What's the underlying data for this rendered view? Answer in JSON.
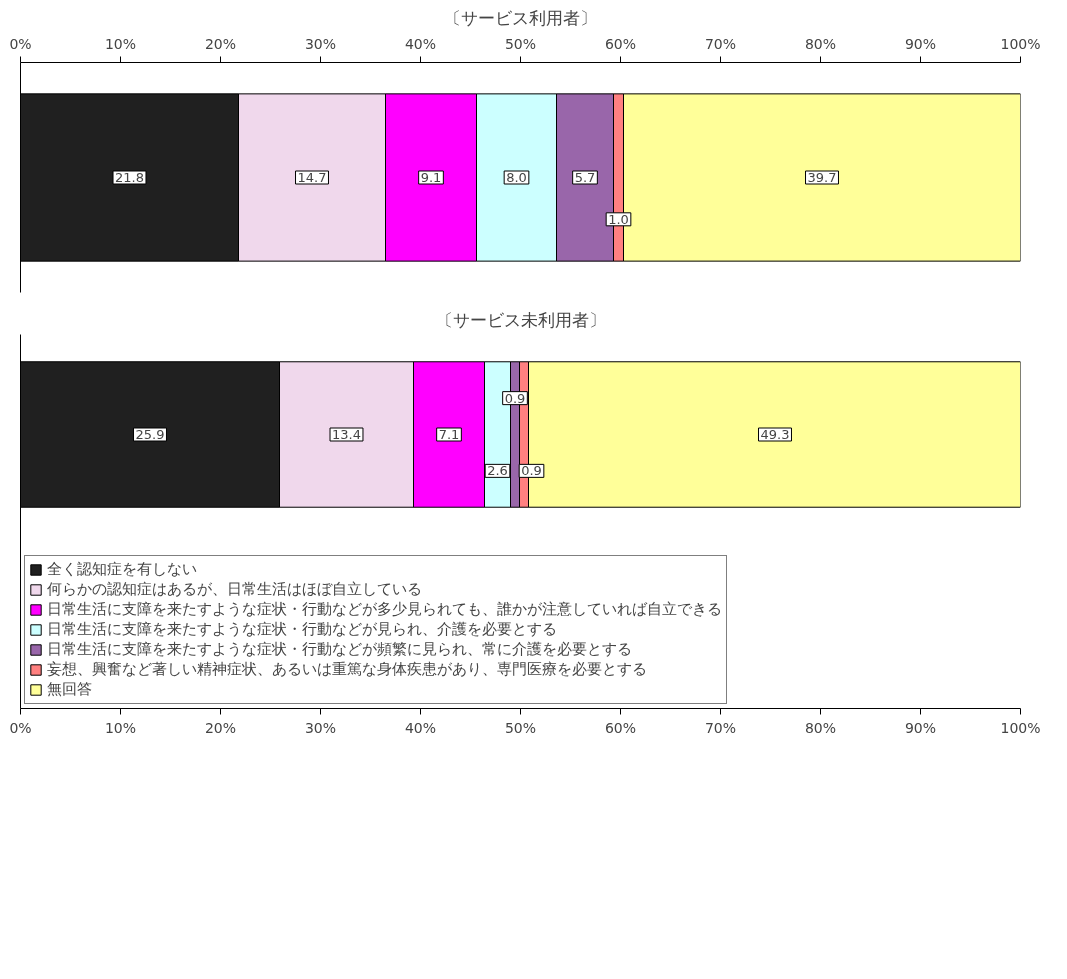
{
  "chart_data": [
    {
      "type": "bar",
      "title": "〔サービス利用者〕",
      "orientation": "horizontal",
      "stacked": true,
      "categories": [
        null
      ],
      "grid": false,
      "x2lim": [
        0,
        100
      ],
      "x2ticks": [
        {
          "value": 0,
          "label": "0%"
        },
        {
          "value": 10,
          "label": "10%"
        },
        {
          "value": 20,
          "label": "20%"
        },
        {
          "value": 30,
          "label": "30%"
        },
        {
          "value": 40,
          "label": "40%"
        },
        {
          "value": 50,
          "label": "50%"
        },
        {
          "value": 60,
          "label": "60%"
        },
        {
          "value": 70,
          "label": "70%"
        },
        {
          "value": 80,
          "label": "80%"
        },
        {
          "value": 90,
          "label": "90%"
        },
        {
          "value": 100,
          "label": "100%"
        }
      ],
      "series": [
        {
          "color": "#202020",
          "values": [
            21.8
          ],
          "value_labels": [
            "21.8"
          ]
        },
        {
          "color": "#f0d8ec",
          "values": [
            14.7
          ],
          "value_labels": [
            "14.7"
          ]
        },
        {
          "color": "#ff00ff",
          "values": [
            9.1
          ],
          "value_labels": [
            "9.1"
          ]
        },
        {
          "color": "#ccffff",
          "values": [
            8.0
          ],
          "value_labels": [
            "8.0"
          ]
        },
        {
          "color": "#9966aa",
          "values": [
            5.7
          ],
          "value_labels": [
            "5.7"
          ]
        },
        {
          "color": "#ff8080",
          "values": [
            1.0
          ],
          "value_labels": [
            "1.0"
          ]
        },
        {
          "color": "#ffff99",
          "values": [
            39.7
          ],
          "value_labels": [
            "39.7"
          ]
        }
      ]
    },
    {
      "type": "bar",
      "title": "〔サービス未利用者〕",
      "orientation": "horizontal",
      "stacked": true,
      "categories": [
        null
      ],
      "grid": false,
      "legend": "bottom",
      "xlim": [
        0,
        100
      ],
      "xticks": [
        {
          "value": 0,
          "label": "0%"
        },
        {
          "value": 10,
          "label": "10%"
        },
        {
          "value": 20,
          "label": "20%"
        },
        {
          "value": 30,
          "label": "30%"
        },
        {
          "value": 40,
          "label": "40%"
        },
        {
          "value": 50,
          "label": "50%"
        },
        {
          "value": 60,
          "label": "60%"
        },
        {
          "value": 70,
          "label": "70%"
        },
        {
          "value": 80,
          "label": "80%"
        },
        {
          "value": 90,
          "label": "90%"
        },
        {
          "value": 100,
          "label": "100%"
        }
      ],
      "series": [
        {
          "name": "全く認知症を有しない",
          "color": "#202020",
          "values": [
            25.9
          ],
          "value_labels": [
            "25.9"
          ]
        },
        {
          "name": "何らかの認知症はあるが、日常生活はほぼ自立している",
          "color": "#f0d8ec",
          "values": [
            13.4
          ],
          "value_labels": [
            "13.4"
          ]
        },
        {
          "name": "日常生活に支障を来たすような症状・行動などが多少見られても、誰かが注意していれば自立できる",
          "color": "#ff00ff",
          "values": [
            7.1
          ],
          "value_labels": [
            "7.1"
          ]
        },
        {
          "name": "日常生活に支障を来たすような症状・行動などが見られ、介護を必要とする",
          "color": "#ccffff",
          "values": [
            2.6
          ],
          "value_labels": [
            "2.6"
          ]
        },
        {
          "name": "日常生活に支障を来たすような症状・行動などが頻繁に見られ、常に介護を必要とする",
          "color": "#9966aa",
          "values": [
            0.9
          ],
          "value_labels": [
            "0.9"
          ]
        },
        {
          "name": "妄想、興奮など著しい精神症状、あるいは重篤な身体疾患があり、専門医療を必要とする",
          "color": "#ff8080",
          "values": [
            0.9
          ],
          "value_labels": [
            "0.9"
          ]
        },
        {
          "name": "無回答",
          "color": "#ffff99",
          "values": [
            49.3
          ],
          "value_labels": [
            "49.3"
          ]
        }
      ]
    }
  ]
}
